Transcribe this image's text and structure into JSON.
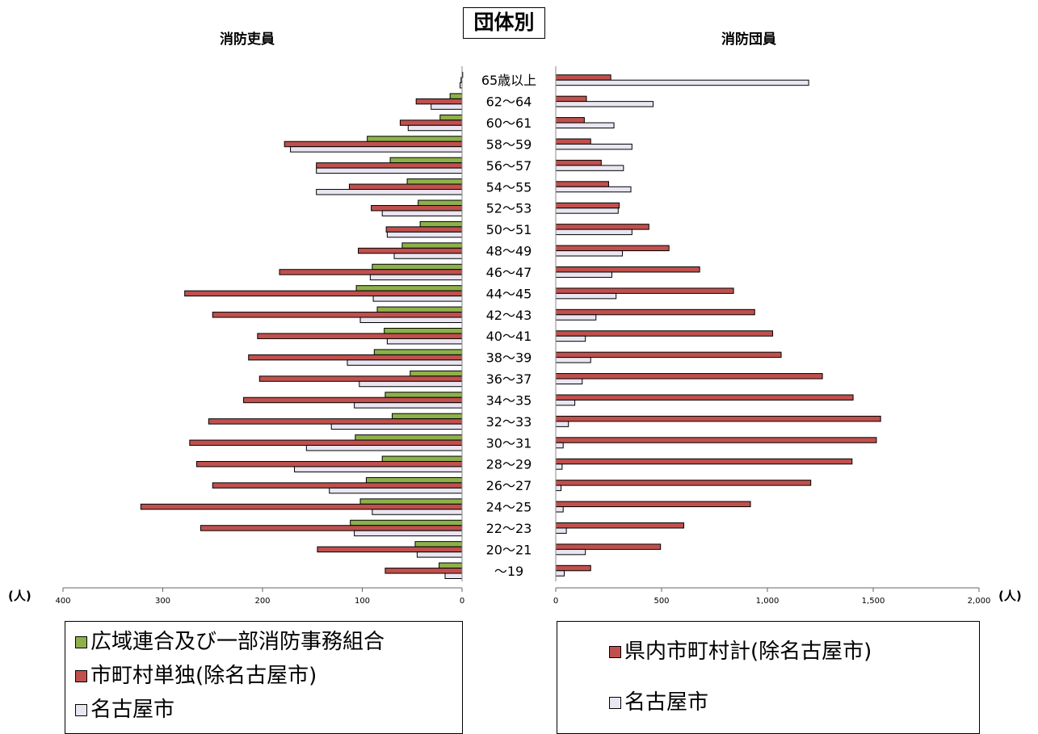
{
  "title": "団体別",
  "left_title": "消防吏員",
  "right_title": "消防団員",
  "unit_label": "(人)",
  "colors": {
    "green": "#8db14a",
    "red": "#c0504d",
    "light": "#e9e6f1",
    "outline": "#000000"
  },
  "legend_left": [
    {
      "label": "広域連合及び一部消防事務組合",
      "color": "#8db14a"
    },
    {
      "label": "市町村単独(除名古屋市)",
      "color": "#c0504d"
    },
    {
      "label": "名古屋市",
      "color": "#e9e6f1"
    }
  ],
  "legend_right": [
    {
      "label": "県内市町村計(除名古屋市)",
      "color": "#c0504d"
    },
    {
      "label": "名古屋市",
      "color": "#e9e6f1"
    }
  ],
  "chart_data": [
    {
      "type": "bar",
      "orientation": "horizontal",
      "direction": "right-to-left",
      "title": "消防吏員",
      "xlim": [
        0,
        400
      ],
      "x_ticks": [
        "0",
        "100",
        "200",
        "300",
        "400"
      ],
      "unit": "(人)",
      "categories": [
        "65歳以上",
        "62〜64",
        "60〜61",
        "58〜59",
        "56〜57",
        "54〜55",
        "52〜53",
        "50〜51",
        "48〜49",
        "46〜47",
        "44〜45",
        "42〜43",
        "40〜41",
        "38〜39",
        "36〜37",
        "34〜35",
        "32〜33",
        "30〜31",
        "28〜29",
        "26〜27",
        "24〜25",
        "22〜23",
        "20〜21",
        "〜19"
      ],
      "series": [
        {
          "name": "広域連合及び一部消防事務組合",
          "color": "#8db14a",
          "values": [
            0,
            12,
            22,
            95,
            72,
            55,
            44,
            42,
            60,
            90,
            106,
            85,
            78,
            88,
            52,
            77,
            70,
            107,
            80,
            96,
            102,
            112,
            47,
            23
          ]
        },
        {
          "name": "市町村単独(除名古屋市)",
          "color": "#c0504d",
          "values": [
            1,
            46,
            62,
            178,
            146,
            113,
            91,
            76,
            104,
            183,
            278,
            250,
            205,
            214,
            203,
            219,
            254,
            273,
            266,
            250,
            322,
            262,
            145,
            77
          ]
        },
        {
          "name": "名古屋市",
          "color": "#e9e6f1",
          "values": [
            2,
            31,
            54,
            172,
            146,
            146,
            80,
            75,
            68,
            92,
            89,
            102,
            75,
            115,
            103,
            108,
            131,
            156,
            168,
            133,
            90,
            108,
            45,
            17
          ]
        }
      ]
    },
    {
      "type": "bar",
      "orientation": "horizontal",
      "direction": "left-to-right",
      "title": "消防団員",
      "xlim": [
        0,
        2000
      ],
      "x_ticks": [
        "0",
        "500",
        "1,000",
        "1,500",
        "2,000"
      ],
      "unit": "(人)",
      "categories": [
        "65歳以上",
        "62〜64",
        "60〜61",
        "58〜59",
        "56〜57",
        "54〜55",
        "52〜53",
        "50〜51",
        "48〜49",
        "46〜47",
        "44〜45",
        "42〜43",
        "40〜41",
        "38〜39",
        "36〜37",
        "34〜35",
        "32〜33",
        "30〜31",
        "28〜29",
        "26〜27",
        "24〜25",
        "22〜23",
        "20〜21",
        "〜19"
      ],
      "series": [
        {
          "name": "県内市町村計(除名古屋市)",
          "color": "#c0504d",
          "values": [
            260,
            145,
            135,
            165,
            215,
            250,
            300,
            440,
            535,
            680,
            840,
            940,
            1025,
            1065,
            1260,
            1405,
            1535,
            1515,
            1400,
            1205,
            920,
            605,
            495,
            165
          ]
        },
        {
          "name": "名古屋市",
          "color": "#e9e6f1",
          "values": [
            1195,
            460,
            275,
            360,
            320,
            355,
            295,
            360,
            315,
            265,
            285,
            190,
            140,
            165,
            125,
            90,
            60,
            35,
            30,
            25,
            35,
            50,
            140,
            40
          ]
        }
      ]
    }
  ]
}
